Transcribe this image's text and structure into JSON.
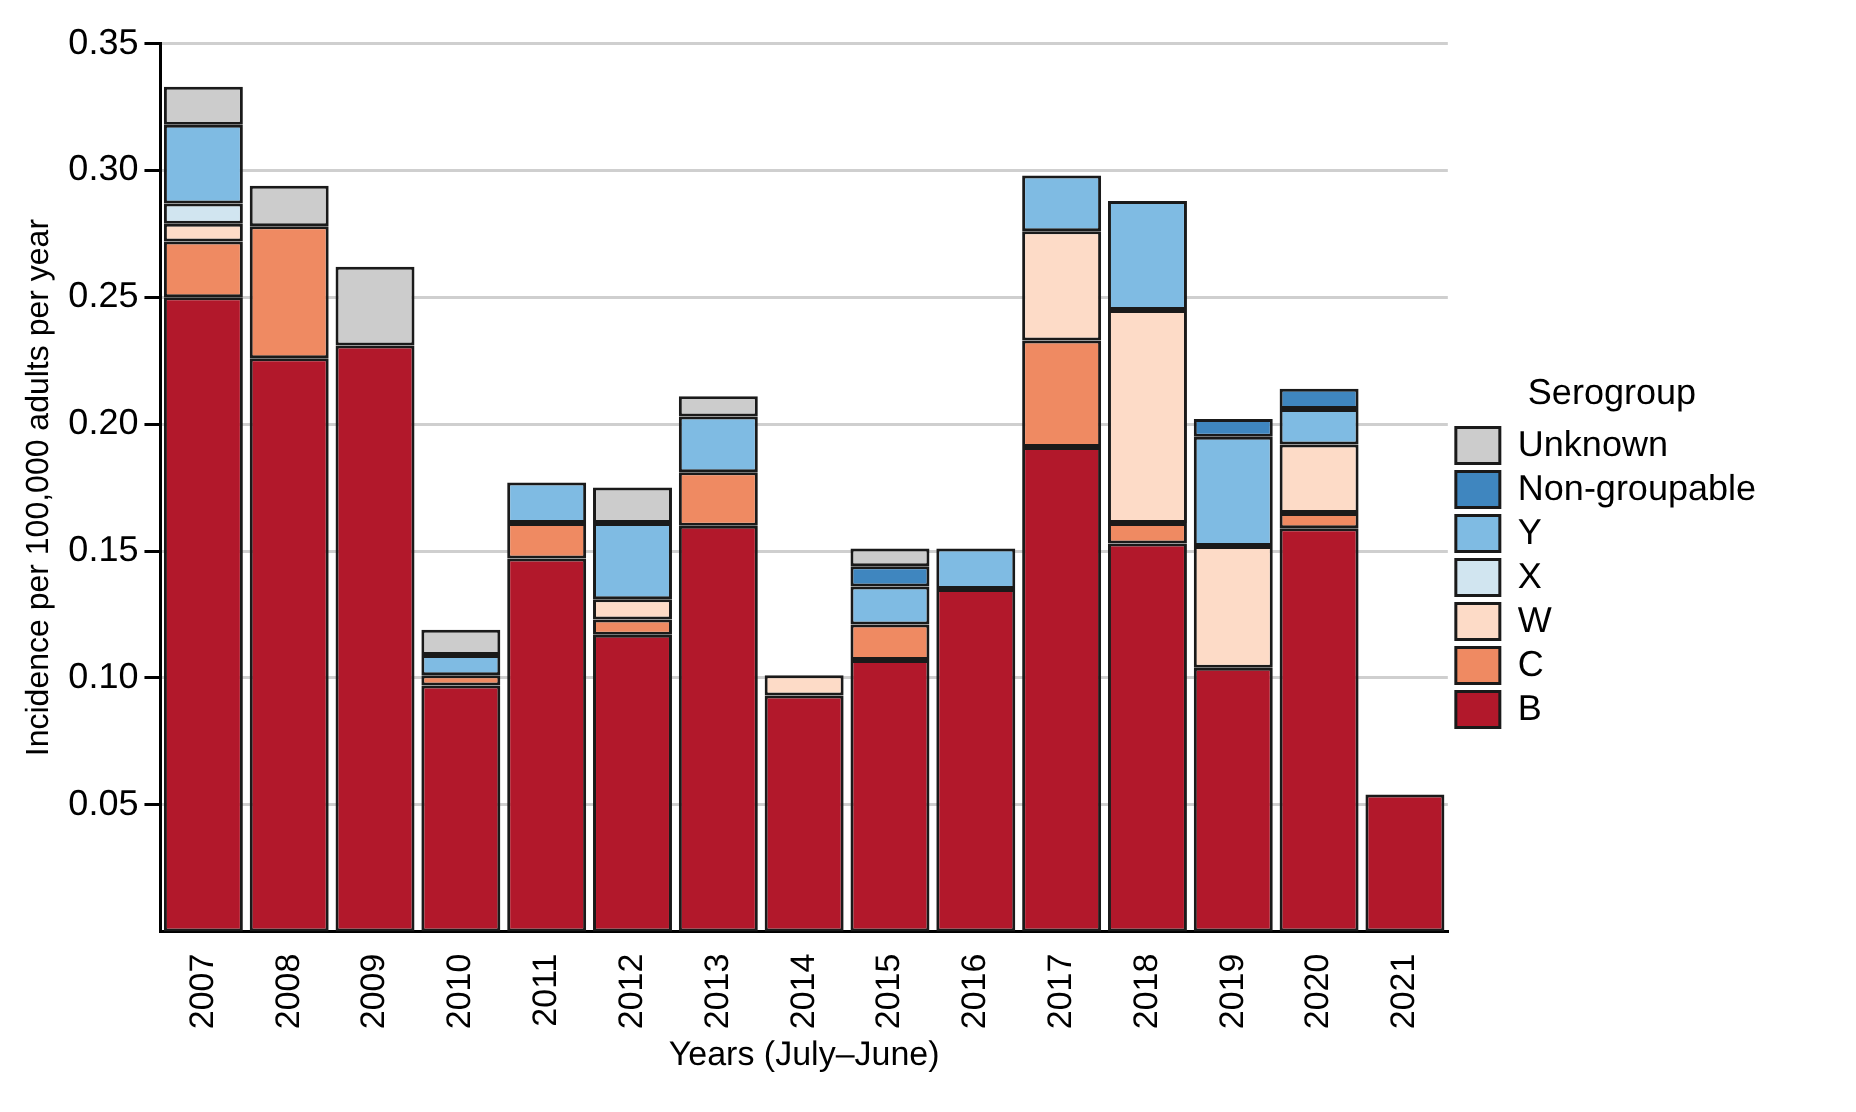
{
  "chart_data": {
    "type": "bar",
    "stacked": true,
    "xlabel": "Years (July–June)",
    "ylabel": "Incidence per 100,000 adults per year",
    "legend_title": "Serogroup",
    "legend": "right",
    "grid": "y",
    "categories": [
      "2007",
      "2008",
      "2009",
      "2010",
      "2011",
      "2012",
      "2013",
      "2014",
      "2015",
      "2016",
      "2017",
      "2018",
      "2019",
      "2020",
      "2021"
    ],
    "ylim": [
      0,
      0.35
    ],
    "yticks": [
      0.05,
      {
        "value": 0.1,
        "label": "0.10"
      },
      0.15,
      {
        "value": 0.2,
        "label": "0.20"
      },
      0.25,
      {
        "value": 0.3,
        "label": "0.30"
      },
      0.35
    ],
    "series": [
      {
        "name": "B",
        "color": "#b2182b",
        "values": [
          0.25,
          0.226,
          0.231,
          0.097,
          0.147,
          0.117,
          0.16,
          0.093,
          0.107,
          0.135,
          0.191,
          0.153,
          0.104,
          0.159,
          0.054
        ]
      },
      {
        "name": "C",
        "color": "#ef8a62",
        "values": [
          0.022,
          0.052,
          null,
          0.004,
          0.014,
          0.006,
          0.021,
          null,
          0.014,
          null,
          0.042,
          0.008,
          null,
          0.006,
          null
        ]
      },
      {
        "name": "W",
        "color": "#fddbc7",
        "values": [
          0.007,
          null,
          null,
          null,
          null,
          0.008,
          null,
          0.008,
          null,
          null,
          0.043,
          0.084,
          0.048,
          0.027,
          null
        ]
      },
      {
        "name": "X",
        "color": "#d1e5f0",
        "values": [
          0.008,
          null,
          null,
          null,
          null,
          null,
          null,
          null,
          null,
          null,
          null,
          null,
          null,
          null,
          null
        ]
      },
      {
        "name": "Y",
        "color": "#7fbbe3",
        "values": [
          0.031,
          null,
          null,
          0.008,
          0.016,
          0.03,
          0.022,
          null,
          0.015,
          0.016,
          0.022,
          0.043,
          0.043,
          0.014,
          null
        ]
      },
      {
        "name": "Non-groupable",
        "color": "#3f86bf",
        "values": [
          null,
          null,
          null,
          null,
          null,
          null,
          null,
          null,
          0.008,
          null,
          null,
          null,
          0.007,
          0.008,
          null
        ]
      },
      {
        "name": "Unknown",
        "color": "#cccccc",
        "values": [
          0.015,
          0.016,
          0.031,
          0.01,
          null,
          0.014,
          0.008,
          null,
          0.007,
          null,
          null,
          null,
          null,
          null,
          null
        ]
      }
    ]
  }
}
